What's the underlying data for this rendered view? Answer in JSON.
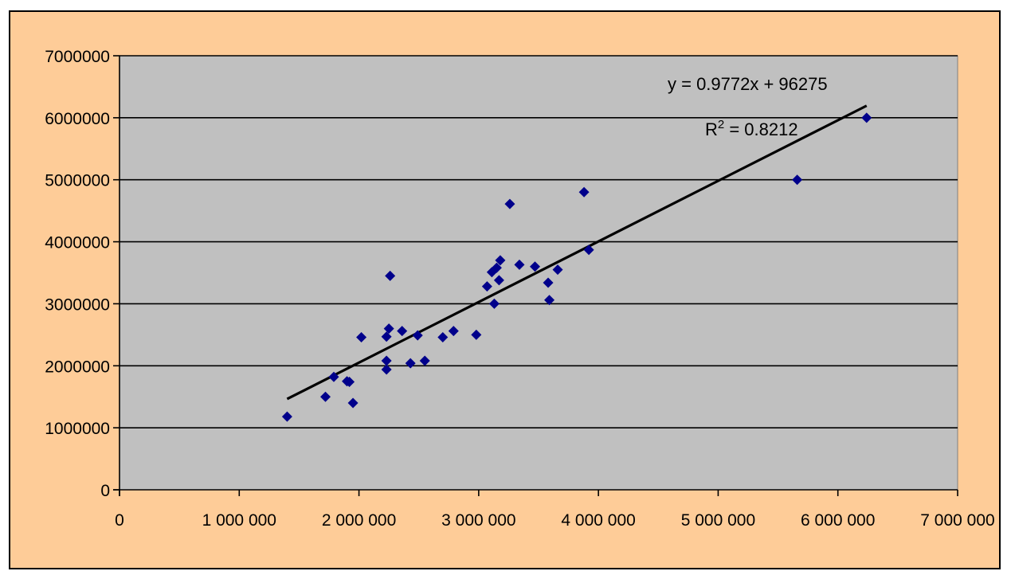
{
  "chart_data": {
    "type": "scatter",
    "title": "",
    "xlabel": "",
    "ylabel": "",
    "xlim": [
      0,
      7000000
    ],
    "ylim": [
      0,
      7000000
    ],
    "grid": "horizontal",
    "legend": "none",
    "x_tick_labels": [
      "0",
      "1 000 000",
      "2 000 000",
      "3 000 000",
      "4 000 000",
      "5 000 000",
      "6 000 000",
      "7 000 000"
    ],
    "y_tick_labels": [
      "0",
      "1000000",
      "2000000",
      "3000000",
      "4000000",
      "5000000",
      "6000000",
      "7000000"
    ],
    "series": [
      {
        "points": [
          [
            1400000,
            1180000
          ],
          [
            1720000,
            1500000
          ],
          [
            1790000,
            1820000
          ],
          [
            1900000,
            1750000
          ],
          [
            1920000,
            1740000
          ],
          [
            1950000,
            1400000
          ],
          [
            2020000,
            2460000
          ],
          [
            2230000,
            2470000
          ],
          [
            2230000,
            1940000
          ],
          [
            2230000,
            2080000
          ],
          [
            2250000,
            2600000
          ],
          [
            2260000,
            3450000
          ],
          [
            2360000,
            2560000
          ],
          [
            2430000,
            2040000
          ],
          [
            2490000,
            2490000
          ],
          [
            2550000,
            2080000
          ],
          [
            2700000,
            2460000
          ],
          [
            2790000,
            2560000
          ],
          [
            2980000,
            2500000
          ],
          [
            3070000,
            3280000
          ],
          [
            3110000,
            3510000
          ],
          [
            3130000,
            3000000
          ],
          [
            3150000,
            3580000
          ],
          [
            3170000,
            3380000
          ],
          [
            3180000,
            3700000
          ],
          [
            3260000,
            4610000
          ],
          [
            3340000,
            3630000
          ],
          [
            3470000,
            3600000
          ],
          [
            3580000,
            3340000
          ],
          [
            3590000,
            3060000
          ],
          [
            3660000,
            3550000
          ],
          [
            3880000,
            4800000
          ],
          [
            3920000,
            3870000
          ],
          [
            5660000,
            5000000
          ],
          [
            6240000,
            6000000
          ]
        ]
      }
    ],
    "trendline": {
      "type": "linear",
      "slope": 0.9772,
      "intercept": 96275,
      "x_range": [
        1400000,
        6240000
      ],
      "equation_label": "y = 0.9772x + 96275",
      "r2_label": "R",
      "r2_superscript": "2",
      "r2_value_text": " = 0.8212"
    },
    "colors": {
      "outer_background": "#fecc98",
      "plot_background": "#c0c0c0",
      "marker": "#00008b",
      "trendline": "#000000",
      "gridline": "#000000"
    }
  }
}
